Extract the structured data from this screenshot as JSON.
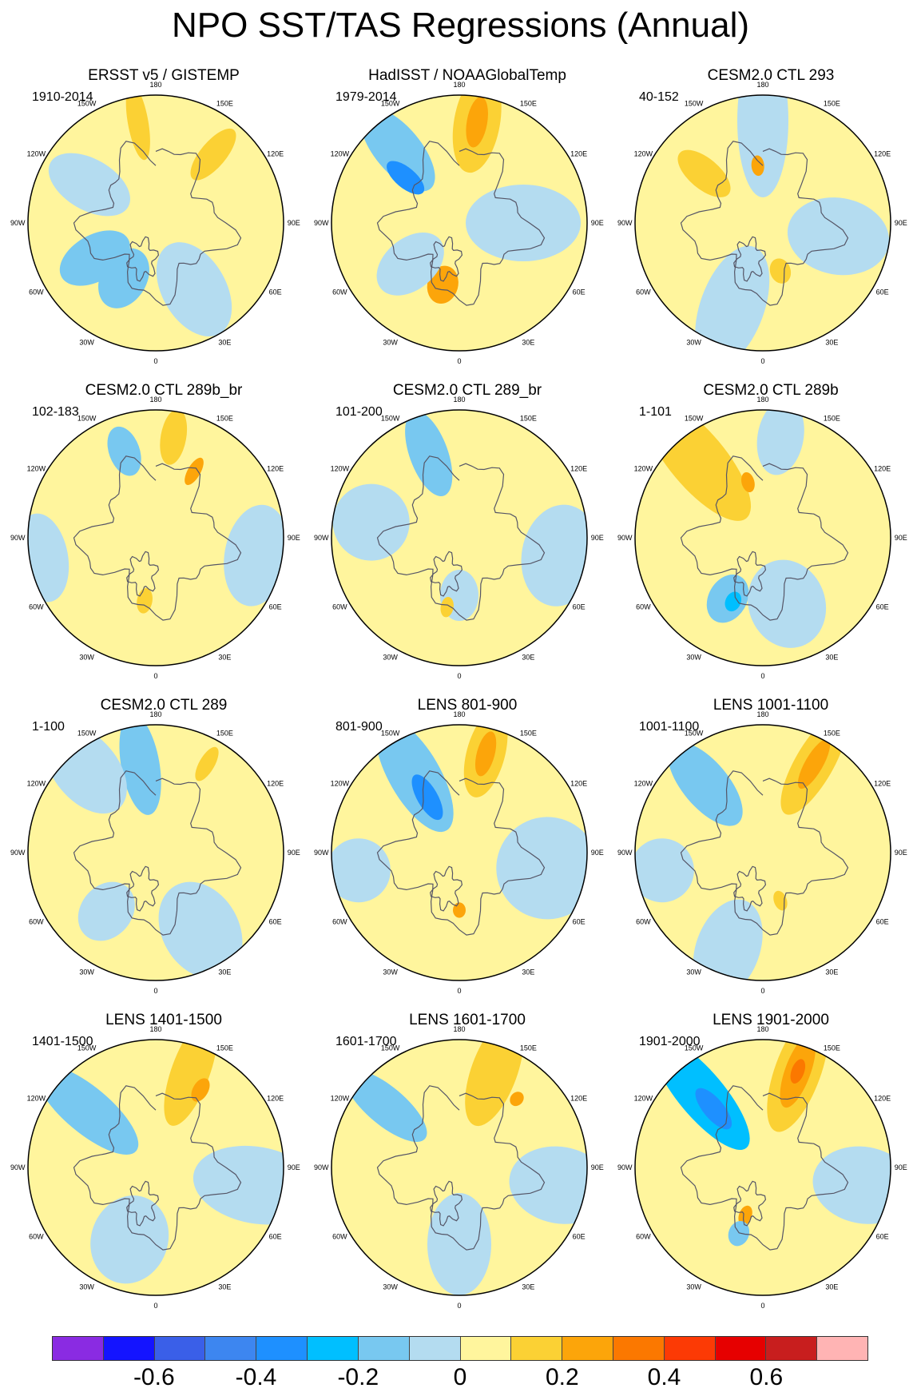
{
  "title": "NPO SST/TAS Regressions (Annual)",
  "lon_labels": [
    "180",
    "150W",
    "120W",
    "90W",
    "60W",
    "30W",
    "0",
    "30E",
    "60E",
    "90E",
    "120E",
    "150E"
  ],
  "colors": {
    "background": "#ffffff",
    "coast": "#555566",
    "missing": "#ffffff"
  },
  "colorbar": {
    "colors": [
      "#8a2be2",
      "#1414ff",
      "#3a5fe8",
      "#3d86f0",
      "#1e90ff",
      "#00bfff",
      "#78c8f0",
      "#b4dcf0",
      "#fff59d",
      "#fbd134",
      "#fca50a",
      "#fb7800",
      "#fc3a05",
      "#e60000",
      "#c81e1e",
      "#ffb4b4"
    ],
    "labels": [
      "-0.6",
      "-0.4",
      "-0.2",
      "0",
      "0.2",
      "0.4",
      "0.6"
    ]
  },
  "panels": [
    {
      "title": "ERSST v5 / GISTEMP",
      "years": "1910-2014"
    },
    {
      "title": "HadISST / NOAAGlobalTemp",
      "years": "1979-2014"
    },
    {
      "title": "CESM2.0 CTL 293",
      "years": "40-152"
    },
    {
      "title": "CESM2.0 CTL 289b_br",
      "years": "102-183"
    },
    {
      "title": "CESM2.0 CTL 289_br",
      "years": "101-200"
    },
    {
      "title": "CESM2.0 CTL 289b",
      "years": "1-101"
    },
    {
      "title": "CESM2.0 CTL 289",
      "years": "1-100"
    },
    {
      "title": "LENS 801-900",
      "years": "801-900"
    },
    {
      "title": "LENS 1001-1100",
      "years": "1001-1100"
    },
    {
      "title": "LENS 1401-1500",
      "years": "1401-1500"
    },
    {
      "title": "LENS 1601-1700",
      "years": "1601-1700"
    },
    {
      "title": "LENS 1901-2000",
      "years": "1901-2000"
    }
  ]
}
